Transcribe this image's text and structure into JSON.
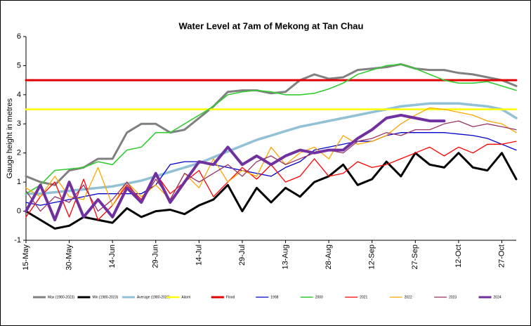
{
  "chart_data": {
    "type": "line",
    "title": "Water Level at 7am of Mekong at Tan Chau",
    "y_label": "Gauge height in metres",
    "categories": [
      "15-May",
      null,
      null,
      "30-May",
      null,
      null,
      "14-Jun",
      null,
      null,
      "29-Jun",
      null,
      null,
      "14-Jul",
      null,
      null,
      "29-Jul",
      null,
      null,
      "13-Aug",
      null,
      null,
      "28-Aug",
      null,
      null,
      "12-Sep",
      null,
      null,
      "27-Sep",
      null,
      null,
      "12-Oct",
      null,
      null,
      "27-Oct",
      null
    ],
    "ylim": [
      -1,
      6
    ],
    "yticks": [
      -1,
      0,
      1,
      2,
      3,
      4,
      5,
      6
    ],
    "grid": false,
    "legend": "bottom",
    "series": [
      {
        "name": "Max (1980-2023)",
        "color": "#808080",
        "width": 3,
        "values": [
          1.2,
          1.0,
          0.9,
          1.4,
          1.5,
          1.8,
          1.8,
          2.7,
          3.0,
          3.0,
          2.7,
          2.8,
          3.2,
          3.6,
          4.1,
          4.15,
          4.15,
          4.05,
          4.1,
          4.5,
          4.7,
          4.55,
          4.6,
          4.85,
          4.9,
          4.95,
          5.05,
          4.9,
          4.85,
          4.85,
          4.75,
          4.7,
          4.6,
          4.5,
          4.3
        ]
      },
      {
        "name": "Min (1980-2023)",
        "color": "#000000",
        "width": 3,
        "values": [
          0.0,
          -0.3,
          -0.6,
          -0.5,
          -0.2,
          -0.3,
          -0.4,
          0.1,
          -0.2,
          0.0,
          0.05,
          -0.1,
          0.2,
          0.4,
          0.9,
          0.0,
          0.8,
          0.3,
          0.8,
          0.5,
          1.0,
          1.2,
          1.6,
          0.9,
          1.1,
          1.7,
          1.2,
          2.0,
          1.6,
          1.5,
          2.0,
          1.5,
          1.4,
          2.0,
          1.1
        ]
      },
      {
        "name": "Average (1980-2023)",
        "color": "#92c1d6",
        "width": 3.5,
        "values": [
          0.6,
          0.6,
          0.65,
          0.7,
          0.75,
          0.8,
          0.85,
          0.95,
          1.05,
          1.2,
          1.35,
          1.5,
          1.65,
          1.85,
          2.05,
          2.25,
          2.45,
          2.6,
          2.75,
          2.9,
          3.0,
          3.1,
          3.2,
          3.3,
          3.4,
          3.5,
          3.6,
          3.65,
          3.7,
          3.7,
          3.7,
          3.65,
          3.6,
          3.5,
          3.2
        ]
      },
      {
        "name": "Alarm",
        "color": "#ffff00",
        "width": 2.5,
        "values": [
          3.5,
          3.5,
          3.5,
          3.5,
          3.5,
          3.5,
          3.5,
          3.5,
          3.5,
          3.5,
          3.5,
          3.5,
          3.5,
          3.5,
          3.5,
          3.5,
          3.5,
          3.5,
          3.5,
          3.5,
          3.5,
          3.5,
          3.5,
          3.5,
          3.5,
          3.5,
          3.5,
          3.5,
          3.5,
          3.5,
          3.5,
          3.5,
          3.5,
          3.5,
          3.5
        ]
      },
      {
        "name": "Flood",
        "color": "#e00000",
        "width": 3,
        "values": [
          4.5,
          4.5,
          4.5,
          4.5,
          4.5,
          4.5,
          4.5,
          4.5,
          4.5,
          4.5,
          4.5,
          4.5,
          4.5,
          4.5,
          4.5,
          4.5,
          4.5,
          4.5,
          4.5,
          4.5,
          4.5,
          4.5,
          4.5,
          4.5,
          4.5,
          4.5,
          4.5,
          4.5,
          4.5,
          4.5,
          4.5,
          4.5,
          4.5,
          4.5,
          4.5
        ]
      },
      {
        "name": "1998",
        "color": "#0000cc",
        "width": 1.3,
        "values": [
          0.3,
          0.2,
          0.3,
          0.4,
          0.5,
          0.6,
          0.6,
          0.6,
          0.6,
          0.9,
          1.6,
          1.7,
          1.7,
          1.6,
          1.5,
          1.4,
          1.3,
          1.2,
          1.5,
          1.7,
          2.1,
          2.2,
          2.3,
          2.4,
          2.4,
          2.6,
          2.7,
          2.7,
          2.7,
          2.7,
          2.65,
          2.6,
          2.5,
          2.3,
          2.1
        ]
      },
      {
        "name": "2000",
        "color": "#33cc33",
        "width": 1.6,
        "values": [
          0.6,
          0.9,
          1.4,
          1.45,
          1.5,
          1.7,
          1.6,
          2.1,
          2.2,
          2.7,
          2.7,
          3.0,
          3.3,
          3.6,
          4.0,
          4.1,
          4.15,
          4.1,
          4.0,
          4.0,
          4.05,
          4.2,
          4.4,
          4.7,
          4.85,
          5.0,
          5.05,
          4.9,
          4.7,
          4.5,
          4.4,
          4.4,
          4.45,
          4.3,
          4.15
        ]
      },
      {
        "name": "2021",
        "color": "#ff0000",
        "width": 1.3,
        "values": [
          -0.2,
          0.5,
          1.0,
          -0.2,
          1.1,
          -0.3,
          0.2,
          0.9,
          0.4,
          1.3,
          0.6,
          1.0,
          1.4,
          0.5,
          1.0,
          1.5,
          1.1,
          1.6,
          1.0,
          1.2,
          1.8,
          1.2,
          1.3,
          1.7,
          1.5,
          1.6,
          1.8,
          2.0,
          2.2,
          1.9,
          2.2,
          2.0,
          2.3,
          2.3,
          2.4
        ]
      },
      {
        "name": "2022",
        "color": "#ffa500",
        "width": 1.3,
        "values": [
          0.8,
          0.5,
          1.2,
          0.5,
          0.4,
          1.5,
          0.2,
          1.0,
          0.5,
          0.9,
          0.4,
          1.3,
          0.8,
          1.8,
          1.0,
          1.4,
          1.2,
          2.2,
          1.6,
          2.0,
          2.2,
          1.8,
          2.6,
          2.3,
          2.4,
          2.6,
          3.0,
          3.3,
          3.55,
          3.5,
          3.4,
          3.3,
          3.1,
          3.0,
          2.7
        ]
      },
      {
        "name": "2023",
        "color": "#993366",
        "width": 1.3,
        "values": [
          0.7,
          0.0,
          0.5,
          0.3,
          0.9,
          0.0,
          0.4,
          1.0,
          0.3,
          1.1,
          0.4,
          1.3,
          1.0,
          1.3,
          1.6,
          1.2,
          1.7,
          1.9,
          1.6,
          1.8,
          2.0,
          2.1,
          2.0,
          2.4,
          2.5,
          2.7,
          2.6,
          2.8,
          2.8,
          3.0,
          3.1,
          2.9,
          3.0,
          2.9,
          2.8
        ]
      },
      {
        "name": "2024",
        "color": "#7030a0",
        "width": 4,
        "values": [
          0.0,
          0.9,
          -0.3,
          1.0,
          -0.2,
          0.4,
          -0.2,
          0.8,
          0.3,
          1.3,
          0.3,
          1.0,
          1.7,
          1.6,
          2.2,
          1.6,
          1.9,
          1.6,
          1.9,
          2.1,
          2.0,
          2.1,
          2.1,
          2.5,
          2.8,
          3.2,
          3.3,
          3.2,
          3.1,
          3.1,
          null,
          null,
          null,
          null,
          null
        ]
      }
    ]
  }
}
